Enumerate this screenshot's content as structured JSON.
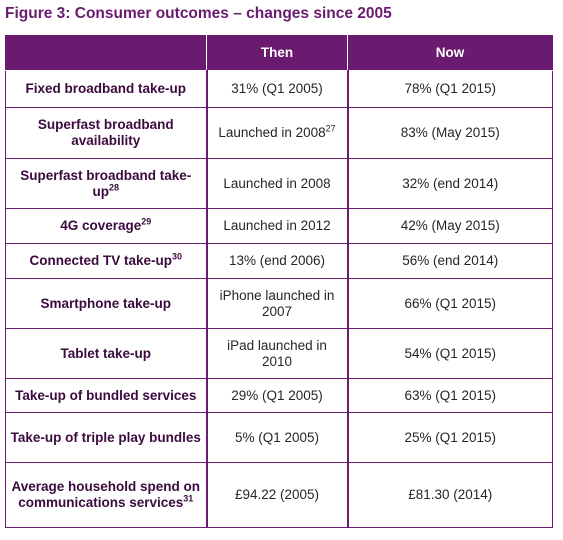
{
  "title": "Figure 3: Consumer outcomes – changes since 2005",
  "table": {
    "headers": [
      "",
      "Then",
      "Now"
    ],
    "rows": [
      {
        "label": "Fixed broadband take-up",
        "sup": "",
        "then": "31% (Q1 2005)",
        "then_sup": "",
        "now": "78% (Q1 2015)"
      },
      {
        "label": "Superfast broadband availability",
        "sup": "",
        "then": "Launched in 2008",
        "then_sup": "27",
        "now": "83% (May 2015)"
      },
      {
        "label": "Superfast broadband take-up",
        "sup": "28",
        "then": "Launched in 2008",
        "then_sup": "",
        "now": "32% (end 2014)"
      },
      {
        "label": "4G coverage",
        "sup": "29",
        "then": "Launched in 2012",
        "then_sup": "",
        "now": "42% (May 2015)"
      },
      {
        "label": "Connected TV take-up",
        "sup": "30",
        "then": "13% (end 2006)",
        "then_sup": "",
        "now": "56% (end 2014)"
      },
      {
        "label": "Smartphone take-up",
        "sup": "",
        "then": "iPhone launched in 2007",
        "then_sup": "",
        "now": "66%  (Q1 2015)"
      },
      {
        "label": "Tablet take-up",
        "sup": "",
        "then": "iPad launched in 2010",
        "then_sup": "",
        "now": "54% (Q1 2015)"
      },
      {
        "label": "Take-up of bundled services",
        "sup": "",
        "then": "29% (Q1 2005)",
        "then_sup": "",
        "now": "63% (Q1 2015)"
      },
      {
        "label": "Take-up of triple play bundles",
        "sup": "",
        "then": "5% (Q1 2005)",
        "then_sup": "",
        "now": "25% (Q1 2015)"
      },
      {
        "label": "Average household spend on communications services",
        "sup": "31",
        "then": "£94.22 (2005)",
        "then_sup": "",
        "now": "£81.30 (2014)"
      }
    ]
  },
  "colors": {
    "accent": "#6a1b6f",
    "header_text": "#ffffff"
  }
}
